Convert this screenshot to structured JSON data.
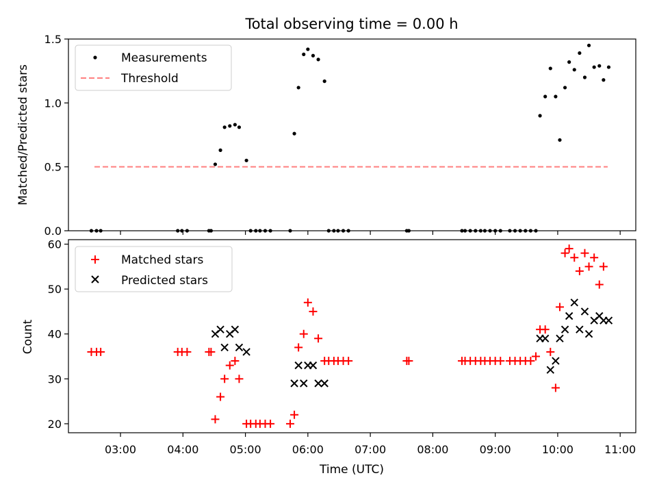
{
  "chart_data": [
    {
      "type": "scatter",
      "title": "Total observing time = 0.00 h",
      "xlabel": "",
      "ylabel": "Matched/Predicted stars",
      "xlim": [
        "02:10",
        "11:15"
      ],
      "ylim": [
        0,
        1.5
      ],
      "yticks": [
        "0.0",
        "0.5",
        "1.0",
        "1.5"
      ],
      "legend": "upper-left",
      "grid": false,
      "series": [
        {
          "name": "Measurements",
          "color": "#000000",
          "marker": "dot",
          "points": [
            [
              "02:32",
              0.0
            ],
            [
              "02:37",
              0.0
            ],
            [
              "02:41",
              0.0
            ],
            [
              "03:55",
              0.0
            ],
            [
              "03:59",
              0.0
            ],
            [
              "04:04",
              0.0
            ],
            [
              "04:25",
              0.0
            ],
            [
              "04:27",
              0.0
            ],
            [
              "04:31",
              0.52
            ],
            [
              "04:36",
              0.63
            ],
            [
              "04:40",
              0.81
            ],
            [
              "04:45",
              0.82
            ],
            [
              "04:50",
              0.83
            ],
            [
              "04:54",
              0.81
            ],
            [
              "05:01",
              0.55
            ],
            [
              "05:05",
              0.0
            ],
            [
              "05:10",
              0.0
            ],
            [
              "05:14",
              0.0
            ],
            [
              "05:19",
              0.0
            ],
            [
              "05:24",
              0.0
            ],
            [
              "05:43",
              0.0
            ],
            [
              "05:47",
              0.76
            ],
            [
              "05:51",
              1.12
            ],
            [
              "05:56",
              1.38
            ],
            [
              "06:00",
              1.42
            ],
            [
              "06:05",
              1.37
            ],
            [
              "06:10",
              1.34
            ],
            [
              "06:16",
              1.17
            ],
            [
              "06:20",
              0.0
            ],
            [
              "06:25",
              0.0
            ],
            [
              "06:29",
              0.0
            ],
            [
              "06:34",
              0.0
            ],
            [
              "06:39",
              0.0
            ],
            [
              "07:35",
              0.0
            ],
            [
              "07:37",
              0.0
            ],
            [
              "08:28",
              0.0
            ],
            [
              "08:31",
              0.0
            ],
            [
              "08:36",
              0.0
            ],
            [
              "08:41",
              0.0
            ],
            [
              "08:46",
              0.0
            ],
            [
              "08:50",
              0.0
            ],
            [
              "08:55",
              0.0
            ],
            [
              "09:00",
              0.0
            ],
            [
              "09:05",
              0.0
            ],
            [
              "09:14",
              0.0
            ],
            [
              "09:19",
              0.0
            ],
            [
              "09:24",
              0.0
            ],
            [
              "09:29",
              0.0
            ],
            [
              "09:34",
              0.0
            ],
            [
              "09:39",
              0.0
            ],
            [
              "09:43",
              0.9
            ],
            [
              "09:48",
              1.05
            ],
            [
              "09:53",
              1.27
            ],
            [
              "09:58",
              1.05
            ],
            [
              "10:02",
              0.71
            ],
            [
              "10:07",
              1.12
            ],
            [
              "10:11",
              1.32
            ],
            [
              "10:16",
              1.26
            ],
            [
              "10:21",
              1.39
            ],
            [
              "10:26",
              1.2
            ],
            [
              "10:30",
              1.45
            ],
            [
              "10:35",
              1.28
            ],
            [
              "10:40",
              1.29
            ],
            [
              "10:44",
              1.18
            ],
            [
              "10:49",
              1.28
            ]
          ]
        },
        {
          "name": "Threshold",
          "color": "#ff7f7f",
          "style": "dashed",
          "points": [
            [
              "02:35",
              0.5
            ],
            [
              "10:48",
              0.5
            ]
          ]
        }
      ]
    },
    {
      "type": "scatter",
      "title": "",
      "xlabel": "Time (UTC)",
      "ylabel": "Count",
      "xlim": [
        "02:10",
        "11:15"
      ],
      "ylim": [
        18,
        61
      ],
      "yticks": [
        "20",
        "30",
        "40",
        "50",
        "60"
      ],
      "xticks": [
        "03:00",
        "04:00",
        "05:00",
        "06:00",
        "07:00",
        "08:00",
        "09:00",
        "10:00",
        "11:00"
      ],
      "legend": "upper-left",
      "grid": false,
      "series": [
        {
          "name": "Matched stars",
          "color": "#ff0000",
          "marker": "plus",
          "points": [
            [
              "02:32",
              36
            ],
            [
              "02:37",
              36
            ],
            [
              "02:41",
              36
            ],
            [
              "03:55",
              36
            ],
            [
              "03:59",
              36
            ],
            [
              "04:04",
              36
            ],
            [
              "04:25",
              36
            ],
            [
              "04:27",
              36
            ],
            [
              "04:31",
              21
            ],
            [
              "04:36",
              26
            ],
            [
              "04:40",
              30
            ],
            [
              "04:45",
              33
            ],
            [
              "04:50",
              34
            ],
            [
              "04:54",
              30
            ],
            [
              "05:01",
              20
            ],
            [
              "05:05",
              20
            ],
            [
              "05:10",
              20
            ],
            [
              "05:14",
              20
            ],
            [
              "05:19",
              20
            ],
            [
              "05:24",
              20
            ],
            [
              "05:43",
              20
            ],
            [
              "05:47",
              22
            ],
            [
              "05:51",
              37
            ],
            [
              "05:56",
              40
            ],
            [
              "06:00",
              47
            ],
            [
              "06:05",
              45
            ],
            [
              "06:10",
              39
            ],
            [
              "06:16",
              34
            ],
            [
              "06:20",
              34
            ],
            [
              "06:25",
              34
            ],
            [
              "06:29",
              34
            ],
            [
              "06:34",
              34
            ],
            [
              "06:39",
              34
            ],
            [
              "07:35",
              34
            ],
            [
              "07:37",
              34
            ],
            [
              "08:28",
              34
            ],
            [
              "08:31",
              34
            ],
            [
              "08:36",
              34
            ],
            [
              "08:41",
              34
            ],
            [
              "08:46",
              34
            ],
            [
              "08:50",
              34
            ],
            [
              "08:55",
              34
            ],
            [
              "09:00",
              34
            ],
            [
              "09:05",
              34
            ],
            [
              "09:14",
              34
            ],
            [
              "09:19",
              34
            ],
            [
              "09:24",
              34
            ],
            [
              "09:29",
              34
            ],
            [
              "09:34",
              34
            ],
            [
              "09:39",
              35
            ],
            [
              "09:43",
              41
            ],
            [
              "09:48",
              41
            ],
            [
              "09:53",
              36
            ],
            [
              "09:58",
              28
            ],
            [
              "10:02",
              46
            ],
            [
              "10:07",
              58
            ],
            [
              "10:11",
              59
            ],
            [
              "10:16",
              57
            ],
            [
              "10:21",
              54
            ],
            [
              "10:26",
              58
            ],
            [
              "10:30",
              55
            ],
            [
              "10:35",
              57
            ],
            [
              "10:40",
              51
            ],
            [
              "10:44",
              55
            ]
          ]
        },
        {
          "name": "Predicted stars",
          "color": "#000000",
          "marker": "x",
          "points": [
            [
              "04:31",
              40
            ],
            [
              "04:36",
              41
            ],
            [
              "04:40",
              37
            ],
            [
              "04:45",
              40
            ],
            [
              "04:50",
              41
            ],
            [
              "04:54",
              37
            ],
            [
              "05:01",
              36
            ],
            [
              "05:47",
              29
            ],
            [
              "05:51",
              33
            ],
            [
              "05:56",
              29
            ],
            [
              "06:00",
              33
            ],
            [
              "06:05",
              33
            ],
            [
              "06:10",
              29
            ],
            [
              "06:16",
              29
            ],
            [
              "09:43",
              39
            ],
            [
              "09:48",
              39
            ],
            [
              "09:53",
              32
            ],
            [
              "09:58",
              34
            ],
            [
              "10:02",
              39
            ],
            [
              "10:07",
              41
            ],
            [
              "10:11",
              44
            ],
            [
              "10:16",
              47
            ],
            [
              "10:21",
              41
            ],
            [
              "10:26",
              45
            ],
            [
              "10:30",
              40
            ],
            [
              "10:35",
              43
            ],
            [
              "10:40",
              44
            ],
            [
              "10:44",
              43
            ],
            [
              "10:49",
              43
            ]
          ]
        }
      ]
    }
  ]
}
